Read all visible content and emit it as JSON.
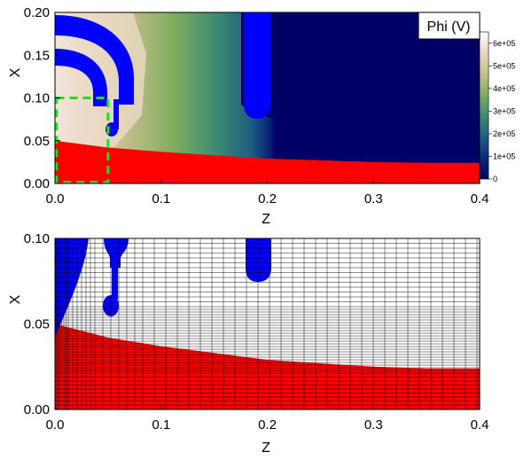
{
  "chart_data": [
    {
      "type": "heatmap",
      "xlabel": "Z",
      "ylabel": "X",
      "xlim": [
        0,
        0.4
      ],
      "ylim": [
        0,
        0.2
      ],
      "xticks": [
        "0.0",
        "0.1",
        "0.2",
        "0.3",
        "0.4"
      ],
      "yticks": [
        "0.00",
        "0.05",
        "0.10",
        "0.15",
        "0.20"
      ],
      "colorbar": {
        "title": "Phi (V)",
        "ticks": [
          "0",
          "1e+05",
          "2e+05",
          "3e+05",
          "4e+05",
          "5e+05",
          "6e+05"
        ],
        "min": 0,
        "max": 650000,
        "colormap": [
          "#000066",
          "#0a2a78",
          "#1f5f7f",
          "#3b8a72",
          "#7fae5c",
          "#c8c08e",
          "#e9d7c3",
          "#ffffff"
        ]
      },
      "regions": {
        "electrodes_color": "#0000ff",
        "plasma_color": "#ff0000",
        "plasma_boundary": {
          "z": [
            0,
            0.05,
            0.1,
            0.15,
            0.2,
            0.25,
            0.3,
            0.35,
            0.4
          ],
          "x": [
            0.05,
            0.042,
            0.037,
            0.033,
            0.029,
            0.027,
            0.025,
            0.024,
            0.024
          ]
        }
      },
      "zoom_box": {
        "z": [
          0,
          0.05
        ],
        "x": [
          0,
          0.1
        ],
        "color": "#22dd22"
      }
    },
    {
      "type": "heatmap",
      "xlabel": "Z",
      "ylabel": "X",
      "xlim": [
        0,
        0.4
      ],
      "ylim": [
        0,
        0.1
      ],
      "xticks": [
        "0.0",
        "0.1",
        "0.2",
        "0.3",
        "0.4"
      ],
      "yticks": [
        "0.00",
        "0.05",
        "0.10"
      ],
      "grid": true,
      "regions": {
        "electrodes_color": "#0000ff",
        "plasma_color": "#ff0000",
        "plasma_boundary": {
          "z": [
            0,
            0.05,
            0.1,
            0.15,
            0.2,
            0.25,
            0.3,
            0.35,
            0.4
          ],
          "x": [
            0.05,
            0.042,
            0.037,
            0.033,
            0.029,
            0.027,
            0.025,
            0.024,
            0.024
          ]
        }
      }
    }
  ]
}
